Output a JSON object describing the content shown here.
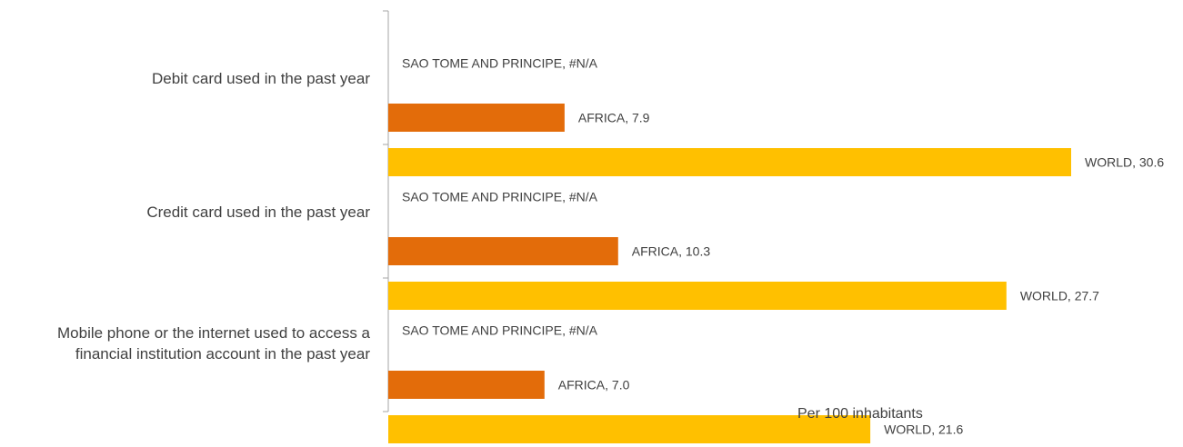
{
  "chart_data": {
    "type": "bar",
    "orientation": "horizontal",
    "categories": [
      "Debit card used in the past year",
      "Credit card used in the past year",
      "Mobile phone or the internet used to access a financial institution account in the past year"
    ],
    "category_lines": [
      [
        "Debit card used in the past year"
      ],
      [
        "Credit card used in the past year"
      ],
      [
        "Mobile phone or the internet used to access a",
        "financial institution account in the past year"
      ]
    ],
    "series": [
      {
        "name": "SAO TOME AND PRINCIPE",
        "values": [
          null,
          null,
          null
        ],
        "value_text": "#N/A",
        "color": "#7f7f7f"
      },
      {
        "name": "AFRICA",
        "values": [
          7.9,
          10.3,
          7.0
        ],
        "color": "#e36c0a"
      },
      {
        "name": "WORLD",
        "values": [
          30.6,
          27.7,
          21.6
        ],
        "color": "#ffc000"
      }
    ],
    "xlabel": "Per 100 inhabitants",
    "xlim": [
      0,
      30.6
    ],
    "grid": false,
    "legend": "none"
  }
}
